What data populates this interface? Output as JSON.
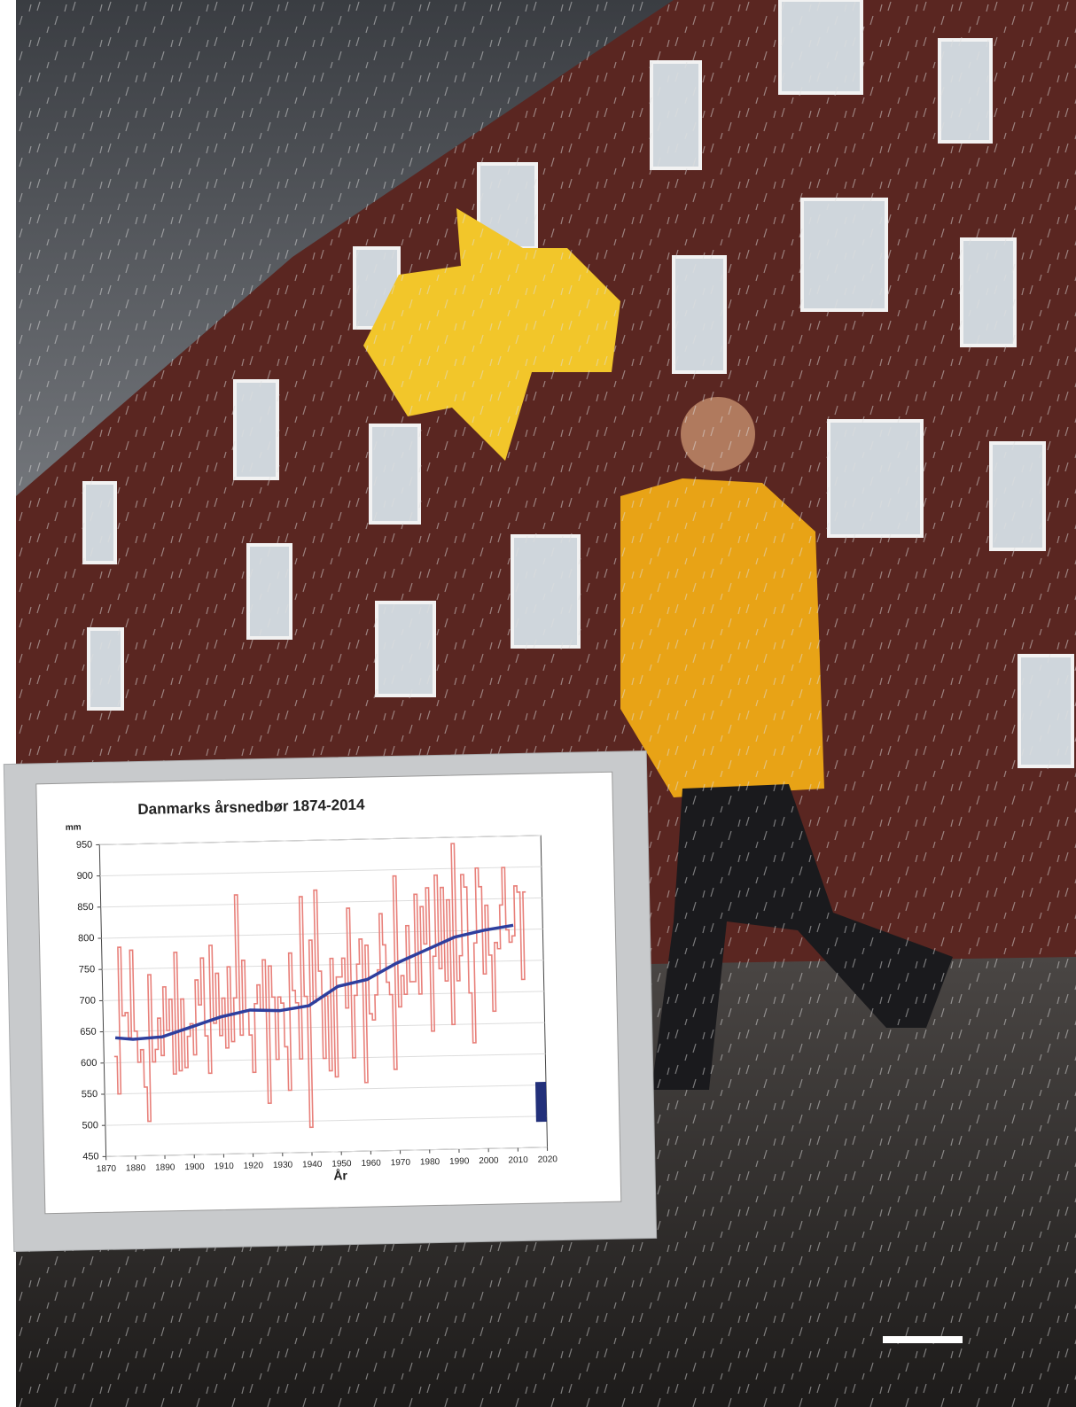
{
  "chart_data": {
    "type": "line",
    "title": "Danmarks årsnedbør 1874-2014",
    "y_unit": "mm",
    "x_label": "År",
    "xlim": [
      1870,
      2020
    ],
    "xticks": [
      1870,
      1880,
      1890,
      1900,
      1910,
      1920,
      1930,
      1940,
      1950,
      1960,
      1970,
      1980,
      1990,
      2000,
      2010,
      2020
    ],
    "ylim": [
      450,
      950
    ],
    "yticks": [
      450,
      500,
      550,
      600,
      650,
      700,
      750,
      800,
      850,
      900,
      950
    ],
    "grid": true,
    "series": [
      {
        "color": "#e8807a",
        "step": true,
        "x": [
          1874,
          1875,
          1876,
          1877,
          1878,
          1879,
          1880,
          1881,
          1882,
          1883,
          1884,
          1885,
          1886,
          1887,
          1888,
          1889,
          1890,
          1891,
          1892,
          1893,
          1894,
          1895,
          1896,
          1897,
          1898,
          1899,
          1900,
          1901,
          1902,
          1903,
          1904,
          1905,
          1906,
          1907,
          1908,
          1909,
          1910,
          1911,
          1912,
          1913,
          1914,
          1915,
          1916,
          1917,
          1918,
          1919,
          1920,
          1921,
          1922,
          1923,
          1924,
          1925,
          1926,
          1927,
          1928,
          1929,
          1930,
          1931,
          1932,
          1933,
          1934,
          1935,
          1936,
          1937,
          1938,
          1939,
          1940,
          1941,
          1942,
          1943,
          1944,
          1945,
          1946,
          1947,
          1948,
          1949,
          1950,
          1951,
          1952,
          1953,
          1954,
          1955,
          1956,
          1957,
          1958,
          1959,
          1960,
          1961,
          1962,
          1963,
          1964,
          1965,
          1966,
          1967,
          1968,
          1969,
          1970,
          1971,
          1972,
          1973,
          1974,
          1975,
          1976,
          1977,
          1978,
          1979,
          1980,
          1981,
          1982,
          1983,
          1984,
          1985,
          1986,
          1987,
          1988,
          1989,
          1990,
          1991,
          1992,
          1993,
          1994,
          1995,
          1996,
          1997,
          1998,
          1999,
          2000,
          2001,
          2002,
          2003,
          2004,
          2005,
          2006,
          2007,
          2008,
          2009,
          2010,
          2011,
          2012,
          2013,
          2014
        ],
        "values": [
          610,
          550,
          785,
          675,
          680,
          640,
          780,
          650,
          600,
          620,
          560,
          505,
          740,
          600,
          620,
          670,
          610,
          720,
          650,
          700,
          580,
          775,
          585,
          700,
          590,
          640,
          660,
          610,
          730,
          690,
          765,
          640,
          580,
          785,
          660,
          740,
          640,
          700,
          620,
          750,
          630,
          700,
          865,
          640,
          760,
          680,
          640,
          580,
          690,
          720,
          680,
          760,
          530,
          750,
          700,
          600,
          700,
          690,
          620,
          550,
          770,
          710,
          690,
          600,
          860,
          700,
          490,
          790,
          690,
          870,
          740,
          600,
          700,
          580,
          760,
          570,
          730,
          730,
          760,
          680,
          840,
          600,
          700,
          750,
          790,
          560,
          780,
          670,
          660,
          700,
          740,
          830,
          780,
          720,
          700,
          580,
          890,
          680,
          730,
          700,
          810,
          720,
          720,
          860,
          700,
          840,
          780,
          870,
          640,
          760,
          890,
          740,
          870,
          720,
          850,
          650,
          940,
          720,
          760,
          890,
          870,
          700,
          620,
          780,
          900,
          870,
          730,
          840,
          760,
          670,
          780,
          770,
          840,
          900,
          800,
          780,
          790,
          870,
          860,
          720,
          860
        ]
      },
      {
        "color": "#2e3f9e",
        "x": [
          1874,
          1880,
          1890,
          1900,
          1910,
          1920,
          1930,
          1940,
          1950,
          1960,
          1970,
          1980,
          1990,
          2000,
          2010
        ],
        "values": [
          640,
          637,
          640,
          655,
          670,
          680,
          678,
          685,
          715,
          725,
          750,
          770,
          790,
          800,
          807
        ]
      }
    ]
  }
}
